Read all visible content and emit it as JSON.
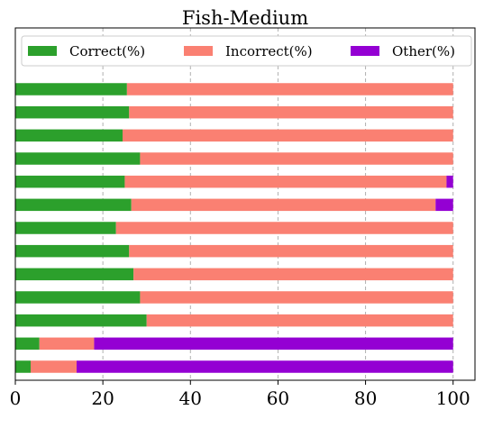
{
  "chart_data": {
    "type": "bar",
    "orientation": "horizontal",
    "stacked": true,
    "title": "Fish-Medium",
    "xlabel": "",
    "ylabel": "",
    "xlim": [
      0,
      105
    ],
    "xticks": [
      0,
      20,
      40,
      60,
      80,
      100
    ],
    "grid": "x-dashed",
    "legend_placement": "top",
    "series": [
      {
        "name": "Correct(%)",
        "color": "#2ca02c",
        "values": [
          25.5,
          26,
          24.5,
          28.5,
          25,
          26.5,
          23,
          26,
          27,
          28.5,
          30,
          5.5,
          3.5
        ]
      },
      {
        "name": "Incorrect(%)",
        "color": "#fa8072",
        "values": [
          74.5,
          74,
          75.5,
          71.5,
          73.5,
          69.5,
          77,
          74,
          73,
          71.5,
          70,
          12.5,
          10.5
        ]
      },
      {
        "name": "Other(%)",
        "color": "#9400d3",
        "values": [
          0,
          0,
          0,
          0,
          1.5,
          4,
          0,
          0,
          0,
          0,
          0,
          82,
          86
        ]
      }
    ]
  }
}
